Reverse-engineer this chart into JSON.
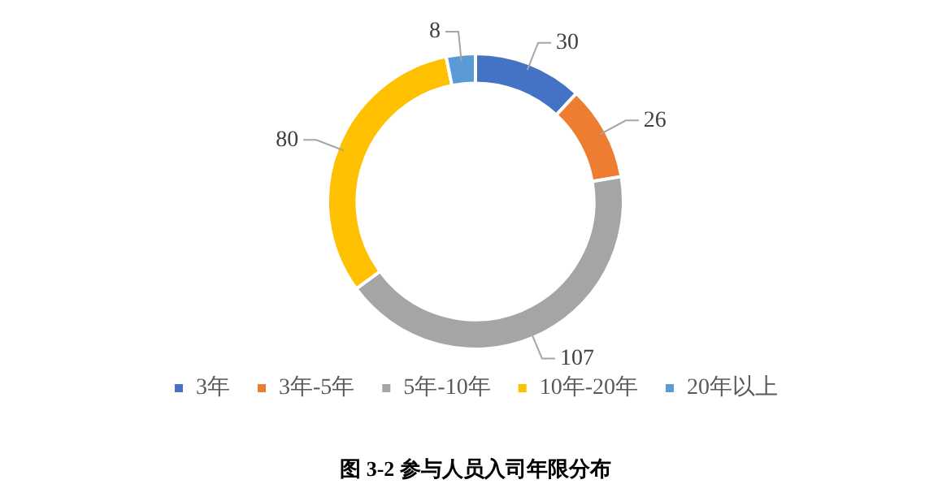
{
  "chart_data": {
    "type": "donut",
    "categories": [
      "3年",
      "3年-5年",
      "5年-10年",
      "10年-20年",
      "20年以上"
    ],
    "values": [
      30,
      26,
      107,
      80,
      8
    ],
    "colors": [
      "#4472c4",
      "#ed7d31",
      "#a5a5a5",
      "#ffc000",
      "#5b9bd5"
    ],
    "data_labels": true,
    "legend": "bottom",
    "annotations": [
      "图 3-2  参与人员入司年限分布"
    ]
  }
}
